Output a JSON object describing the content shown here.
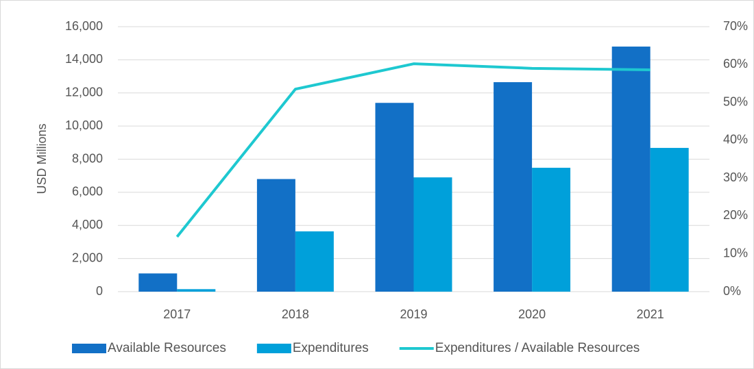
{
  "chart_data": {
    "type": "bar-line",
    "categories": [
      "2017",
      "2018",
      "2019",
      "2020",
      "2021"
    ],
    "ylabel": "USD Millions",
    "series": [
      {
        "name": "Available Resources",
        "type": "bar",
        "color": "#1270c6",
        "values": [
          1100,
          6800,
          11400,
          12650,
          14800
        ]
      },
      {
        "name": "Expenditures",
        "type": "bar",
        "color": "#00a0da",
        "values": [
          150,
          3640,
          6900,
          7480,
          8680
        ]
      },
      {
        "name": "Expenditures / Available Resources",
        "type": "line",
        "axis": "y2",
        "color": "#1ec8d0",
        "values": [
          14.5,
          53.5,
          60.2,
          59,
          58.6
        ]
      }
    ],
    "ylim": [
      0,
      16000
    ],
    "yticks": [
      0,
      {
        "value": 2000,
        "label": "2,000"
      },
      {
        "value": 4000,
        "label": "4,000"
      },
      {
        "value": 6000,
        "label": "6,000"
      },
      {
        "value": 8000,
        "label": "8,000"
      },
      {
        "value": 10000,
        "label": "10,000"
      },
      {
        "value": 12000,
        "label": "12,000"
      },
      {
        "value": 14000,
        "label": "14,000"
      },
      {
        "value": 16000,
        "label": "16,000"
      }
    ],
    "y2lim": [
      0,
      70
    ],
    "y2ticks": [
      {
        "value": 0,
        "label": "0%"
      },
      {
        "value": 10,
        "label": "10%"
      },
      {
        "value": 20,
        "label": "20%"
      },
      {
        "value": 30,
        "label": "30%"
      },
      {
        "value": 40,
        "label": "40%"
      },
      {
        "value": 50,
        "label": "50%"
      },
      {
        "value": 60,
        "label": "60%"
      },
      {
        "value": 70,
        "label": "70%"
      }
    ],
    "legend": "bottom"
  }
}
